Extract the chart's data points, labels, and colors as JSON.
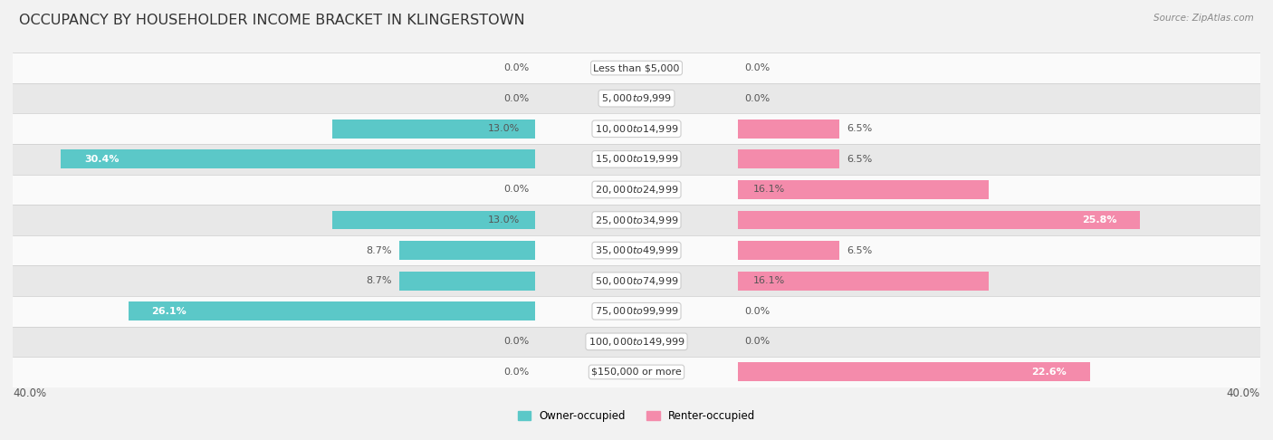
{
  "title": "OCCUPANCY BY HOUSEHOLDER INCOME BRACKET IN KLINGERSTOWN",
  "source": "Source: ZipAtlas.com",
  "categories": [
    "Less than $5,000",
    "$5,000 to $9,999",
    "$10,000 to $14,999",
    "$15,000 to $19,999",
    "$20,000 to $24,999",
    "$25,000 to $34,999",
    "$35,000 to $49,999",
    "$50,000 to $74,999",
    "$75,000 to $99,999",
    "$100,000 to $149,999",
    "$150,000 or more"
  ],
  "owner_values": [
    0.0,
    0.0,
    13.0,
    30.4,
    0.0,
    13.0,
    8.7,
    8.7,
    26.1,
    0.0,
    0.0
  ],
  "renter_values": [
    0.0,
    0.0,
    6.5,
    6.5,
    16.1,
    25.8,
    6.5,
    16.1,
    0.0,
    0.0,
    22.6
  ],
  "owner_color": "#5BC8C8",
  "renter_color": "#F48BAB",
  "xlim": 40.0,
  "bg_color": "#f2f2f2",
  "row_color_even": "#fafafa",
  "row_color_odd": "#e8e8e8",
  "title_fontsize": 11.5,
  "label_fontsize": 8,
  "category_fontsize": 8,
  "source_fontsize": 7.5
}
